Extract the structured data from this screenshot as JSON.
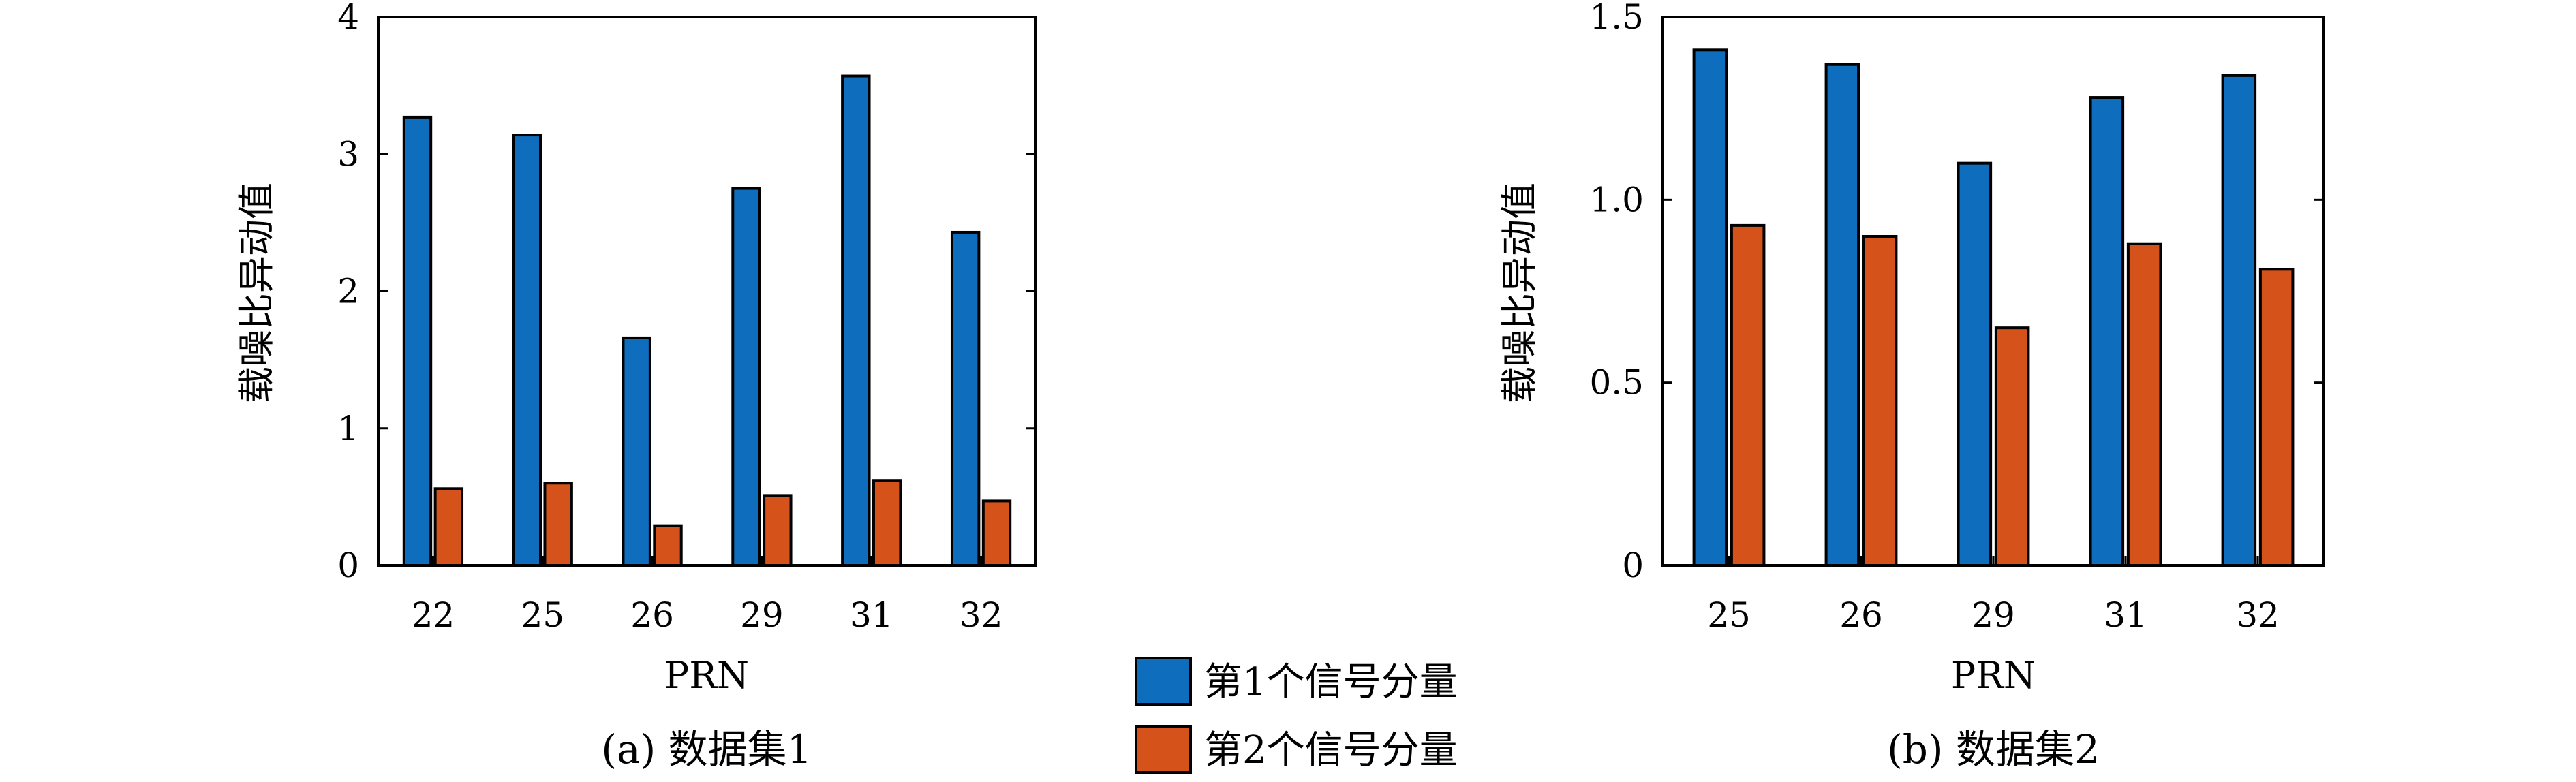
{
  "colors": {
    "series1": "#0e6ebd",
    "series2": "#d6521b",
    "axis": "#000000"
  },
  "legend": {
    "items": [
      {
        "label": "第1个信号分量",
        "color": "#0e6ebd"
      },
      {
        "label": "第2个信号分量",
        "color": "#d6521b"
      }
    ]
  },
  "chart_data": [
    {
      "type": "bar",
      "caption": "(a) 数据集1",
      "xlabel": "PRN",
      "ylabel": "载噪比异动值",
      "categories": [
        "22",
        "25",
        "26",
        "29",
        "31",
        "32"
      ],
      "series": [
        {
          "name": "第1个信号分量",
          "values": [
            3.27,
            3.14,
            1.66,
            2.75,
            3.57,
            2.43
          ]
        },
        {
          "name": "第2个信号分量",
          "values": [
            0.56,
            0.6,
            0.29,
            0.51,
            0.62,
            0.47
          ]
        }
      ],
      "ylim": [
        0,
        4
      ],
      "yticks": [
        "0",
        "1",
        "2",
        "3",
        "4"
      ],
      "ytick_values": [
        0,
        1,
        2,
        3,
        4
      ],
      "grid": false
    },
    {
      "type": "bar",
      "caption": "(b) 数据集2",
      "xlabel": "PRN",
      "ylabel": "载噪比异动值",
      "categories": [
        "25",
        "26",
        "29",
        "31",
        "32"
      ],
      "series": [
        {
          "name": "第1个信号分量",
          "values": [
            1.41,
            1.37,
            1.1,
            1.28,
            1.34
          ]
        },
        {
          "name": "第2个信号分量",
          "values": [
            0.93,
            0.9,
            0.65,
            0.88,
            0.81
          ]
        }
      ],
      "ylim": [
        0,
        1.5
      ],
      "yticks": [
        "0",
        "0.5",
        "1.0",
        "1.5"
      ],
      "ytick_values": [
        0,
        0.5,
        1.0,
        1.5
      ],
      "grid": false
    }
  ]
}
